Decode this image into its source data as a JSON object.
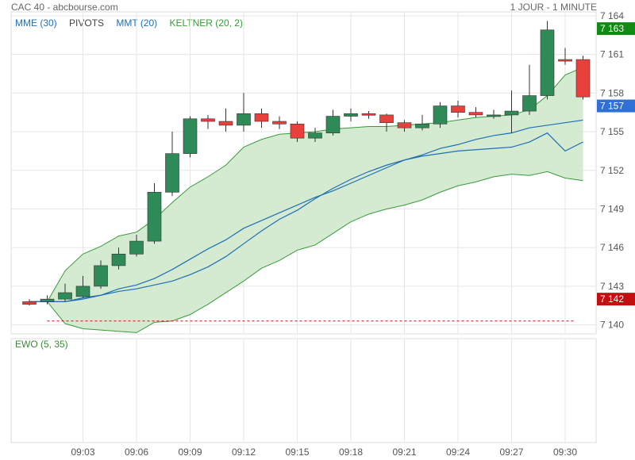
{
  "header": {
    "title": "CAC 40 - abcbourse.com",
    "period": "1 JOUR - 1 MINUTE"
  },
  "legend": [
    {
      "label": "MME (30)",
      "color": "#1f6fb5"
    },
    {
      "label": "PIVOTS",
      "color": "#444444"
    },
    {
      "label": "MMT (20)",
      "color": "#1f6fb5"
    },
    {
      "label": "KELTNER (20, 2)",
      "color": "#3a9a3a"
    }
  ],
  "indicator": {
    "label": "EWO (5, 35)"
  },
  "badges": [
    {
      "value": "7 163",
      "y": 7163,
      "color": "#138a13"
    },
    {
      "value": "7 157",
      "y": 7157,
      "color": "#2f6fd8"
    },
    {
      "value": "7 142",
      "y": 7142,
      "color": "#c21010"
    }
  ],
  "colors": {
    "up": "#2e8b57",
    "down": "#e8413c",
    "keltner_fill": "#cfe8cc",
    "keltner_line": "#3a9a3a",
    "ma": "#1f6fb5",
    "pivot": "#c21010"
  },
  "chart_data": {
    "type": "candlestick",
    "ylim": [
      7139.3,
      7164.3
    ],
    "y_ticks": [
      7140,
      7143,
      7146,
      7149,
      7152,
      7155,
      7158,
      7161,
      7164
    ],
    "y_tick_labels": [
      "7 140",
      "7 143",
      "7 146",
      "7 149",
      "7 152",
      "7 155",
      "7 158",
      "7 161",
      "7 164"
    ],
    "x_ticks": [
      "09:03",
      "09:06",
      "09:09",
      "09:12",
      "09:15",
      "09:18",
      "09:21",
      "09:24",
      "09:27",
      "09:30"
    ],
    "times": [
      "09:00",
      "09:01",
      "09:02",
      "09:03",
      "09:04",
      "09:05",
      "09:06",
      "09:07",
      "09:08",
      "09:09",
      "09:10",
      "09:11",
      "09:12",
      "09:13",
      "09:14",
      "09:15",
      "09:16",
      "09:17",
      "09:18",
      "09:19",
      "09:20",
      "09:21",
      "09:22",
      "09:23",
      "09:24",
      "09:25",
      "09:26",
      "09:27",
      "09:28",
      "09:29",
      "09:30",
      "09:31"
    ],
    "open": [
      7141.8,
      7141.8,
      7142.0,
      7142.2,
      7143.0,
      7144.6,
      7145.5,
      7146.5,
      7150.3,
      7153.3,
      7156.0,
      7155.8,
      7155.5,
      7156.4,
      7155.8,
      7155.6,
      7154.5,
      7154.9,
      7156.2,
      7156.4,
      7156.3,
      7155.7,
      7155.3,
      7155.6,
      7157.0,
      7156.5,
      7156.2,
      7156.3,
      7156.6,
      7157.8,
      7160.6,
      7160.6
    ],
    "close": [
      7141.6,
      7142.0,
      7142.5,
      7143.0,
      7144.6,
      7145.5,
      7146.5,
      7150.3,
      7153.3,
      7156.0,
      7155.8,
      7155.5,
      7156.4,
      7155.8,
      7155.6,
      7154.5,
      7154.9,
      7156.2,
      7156.4,
      7156.3,
      7155.7,
      7155.3,
      7155.6,
      7157.0,
      7156.5,
      7156.3,
      7156.3,
      7156.6,
      7157.8,
      7162.9,
      7160.5,
      7157.7
    ],
    "high": [
      7142.0,
      7142.3,
      7143.2,
      7143.8,
      7145.0,
      7146.0,
      7147.0,
      7151.0,
      7155.0,
      7156.2,
      7156.3,
      7156.8,
      7158.0,
      7156.8,
      7156.2,
      7155.8,
      7155.3,
      7156.7,
      7156.8,
      7156.6,
      7156.4,
      7155.9,
      7156.3,
      7157.3,
      7157.4,
      7156.9,
      7156.7,
      7158.2,
      7160.2,
      7163.6,
      7161.5,
      7160.9
    ],
    "low": [
      7141.5,
      7141.6,
      7141.8,
      7142.1,
      7142.8,
      7144.3,
      7145.3,
      7146.3,
      7150.0,
      7153.0,
      7155.2,
      7155.0,
      7155.0,
      7155.3,
      7155.2,
      7154.2,
      7154.2,
      7154.7,
      7155.8,
      7156.0,
      7155.0,
      7155.0,
      7155.1,
      7155.3,
      7156.1,
      7156.1,
      7156.0,
      7154.9,
      7156.3,
      7157.5,
      7160.2,
      7157.5
    ],
    "keltner_upper": [
      7141.8,
      7141.8,
      7144.2,
      7145.5,
      7146.1,
      7146.9,
      7147.2,
      7148.2,
      7149.5,
      7150.7,
      7151.5,
      7152.4,
      7153.8,
      7154.4,
      7154.8,
      7154.9,
      7155.0,
      7155.2,
      7155.3,
      7155.4,
      7155.4,
      7155.5,
      7155.6,
      7155.7,
      7155.9,
      7156.1,
      7156.2,
      7156.3,
      7156.7,
      7157.8,
      7159.4,
      7160.0
    ],
    "keltner_lower": [
      7141.8,
      7141.8,
      7140.1,
      7139.7,
      7139.6,
      7139.5,
      7139.4,
      7140.2,
      7140.3,
      7140.8,
      7141.6,
      7142.5,
      7143.4,
      7144.4,
      7145.0,
      7145.8,
      7146.2,
      7147.1,
      7148.0,
      7148.6,
      7149.0,
      7149.3,
      7149.7,
      7150.3,
      7150.8,
      7151.1,
      7151.5,
      7151.7,
      7151.6,
      7151.9,
      7151.4,
      7151.2
    ],
    "mme_30": [
      7141.8,
      7141.8,
      7141.8,
      7142.1,
      7142.3,
      7142.8,
      7143.1,
      7143.6,
      7144.3,
      7145.1,
      7145.9,
      7146.6,
      7147.5,
      7148.1,
      7148.7,
      7149.3,
      7149.9,
      7150.4,
      7151.0,
      7151.6,
      7152.2,
      7152.8,
      7153.2,
      7153.7,
      7154.0,
      7154.4,
      7154.7,
      7154.9,
      7155.3,
      7155.5,
      7155.7,
      7155.9
    ],
    "mmt_20": [
      7141.8,
      7141.8,
      7141.8,
      7142.0,
      7142.3,
      7142.6,
      7142.8,
      7143.1,
      7143.4,
      7143.9,
      7144.5,
      7145.3,
      7146.3,
      7147.3,
      7148.2,
      7148.9,
      7149.8,
      7150.6,
      7151.3,
      7151.9,
      7152.4,
      7152.8,
      7153.1,
      7153.3,
      7153.5,
      7153.6,
      7153.7,
      7153.8,
      7154.2,
      7154.9,
      7153.5,
      7154.2
    ],
    "pivot": 7140.3
  }
}
